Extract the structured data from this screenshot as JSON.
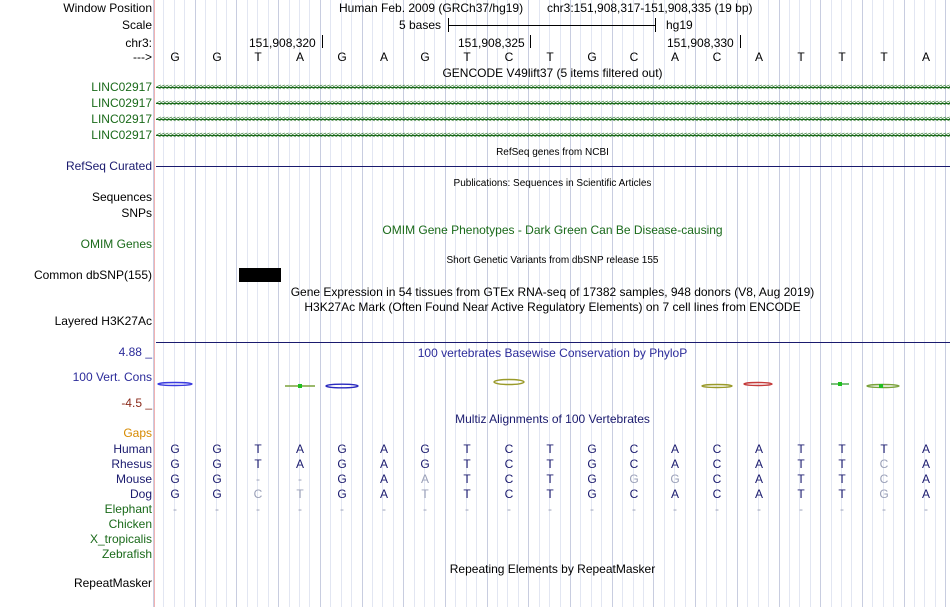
{
  "header": {
    "window_position_label": "Window Position",
    "scale_label": "Scale",
    "chr_label": "chr3:",
    "arrow_label": "--->",
    "assembly_text": "Human Feb. 2009 (GRCh37/hg19)",
    "position_text": "chr3:151,908,317-151,908,335 (19 bp)",
    "scale_text": "5 bases",
    "scale_db": "hg19",
    "coords": [
      "151,908,320",
      "151,908,325",
      "151,908,330"
    ]
  },
  "sequence": [
    "G",
    "G",
    "T",
    "A",
    "G",
    "A",
    "G",
    "T",
    "C",
    "T",
    "G",
    "C",
    "A",
    "C",
    "A",
    "T",
    "T",
    "T",
    "A"
  ],
  "tracks": {
    "gencode_title": "GENCODE V49lift37 (5 items filtered out)",
    "gencode_genes": [
      "LINC02917",
      "LINC02917",
      "LINC02917",
      "LINC02917"
    ],
    "refseq_label": "RefSeq Curated",
    "refseq_title": "RefSeq genes from NCBI",
    "sequences_label": "Sequences",
    "publications_title": "Publications: Sequences in Scientific Articles",
    "snps_label": "SNPs",
    "omim_title": "OMIM Gene Phenotypes - Dark Green Can Be Disease-causing",
    "omim_label": "OMIM Genes",
    "dbsnp_title": "Short Genetic Variants from dbSNP release 155",
    "dbsnp_label": "Common dbSNP(155)",
    "gtex_title": "Gene Expression in 54 tissues from GTEx RNA-seq of 17382 samples, 948 donors (V8, Aug 2019)",
    "h3k27ac_title": "H3K27Ac Mark (Often Found Near Active Regulatory Elements) on 7 cell lines from ENCODE",
    "h3k27ac_label": "Layered H3K27Ac",
    "cons_max": "4.88 _",
    "cons_label": "100 Vert. Cons",
    "cons_min": "-4.5 _",
    "cons_title": "100 vertebrates Basewise Conservation by PhyloP",
    "multiz_title": "Multiz Alignments of 100 Vertebrates",
    "gaps_label": "Gaps",
    "repeat_title": "Repeating Elements by RepeatMasker",
    "repeat_label": "RepeatMasker"
  },
  "alignment": [
    {
      "species": "Human",
      "bases": [
        "G",
        "G",
        "T",
        "A",
        "G",
        "A",
        "G",
        "T",
        "C",
        "T",
        "G",
        "C",
        "A",
        "C",
        "A",
        "T",
        "T",
        "T",
        "A"
      ]
    },
    {
      "species": "Rhesus",
      "bases": [
        "G",
        "G",
        "T",
        "A",
        "G",
        "A",
        "G",
        "T",
        "C",
        "T",
        "G",
        "C",
        "A",
        "C",
        "A",
        "T",
        "T",
        "C",
        "A"
      ]
    },
    {
      "species": "Mouse",
      "bases": [
        "G",
        "G",
        "-",
        "-",
        "G",
        "A",
        "A",
        "T",
        "C",
        "T",
        "G",
        "G",
        "G",
        "C",
        "A",
        "T",
        "T",
        "C",
        "A"
      ]
    },
    {
      "species": "Dog",
      "bases": [
        "G",
        "G",
        "C",
        "T",
        "G",
        "A",
        "T",
        "T",
        "C",
        "T",
        "G",
        "C",
        "A",
        "C",
        "A",
        "T",
        "T",
        "G",
        "A"
      ]
    },
    {
      "species": "Elephant",
      "bases": [
        "-",
        "-",
        "-",
        "-",
        "-",
        "-",
        "-",
        "-",
        "-",
        "-",
        "-",
        "-",
        "-",
        "-",
        "-",
        "-",
        "-",
        "-",
        "-"
      ]
    },
    {
      "species": "Chicken",
      "bases": []
    },
    {
      "species": "X_tropicalis",
      "bases": []
    },
    {
      "species": "Zebrafish",
      "bases": []
    }
  ],
  "colors": {
    "gene_green": "#1a6a1a",
    "navy": "#1a1a6e",
    "gap_orange": "#d78a00",
    "mismatch_grey": "#9aa0b8"
  }
}
